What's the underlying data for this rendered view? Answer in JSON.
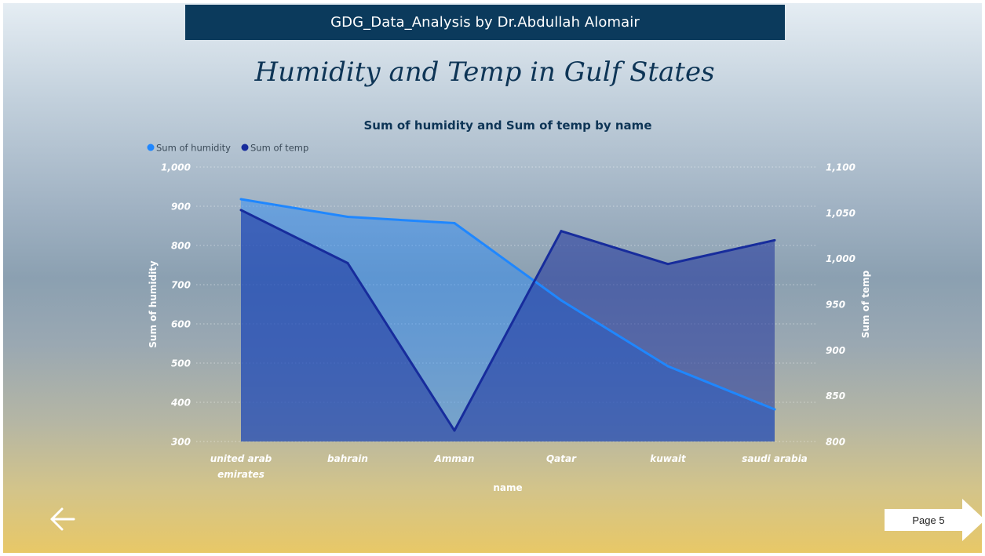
{
  "header": {
    "banner_text": "GDG_Data_Analysis by Dr.Abdullah Alomair",
    "page_title": "Humidity and Temp in Gulf States"
  },
  "navigation": {
    "back_icon": "arrow-left-icon",
    "page_label": "Page 5"
  },
  "colors": {
    "banner_bg": "#0b3a5c",
    "humidity": "#1f87ff",
    "temp": "#172c9c"
  },
  "chart_data": {
    "type": "area",
    "title": "Sum of humidity and Sum of temp by name",
    "xlabel": "name",
    "ylabel": "Sum of humidity",
    "y2label": "Sum of temp",
    "legend_position": "top-left",
    "grid": true,
    "categories": [
      "united arab emirates",
      "bahrain",
      "Amman",
      "Qatar",
      "kuwait",
      "saudi arabia"
    ],
    "category_labels": [
      [
        "united arab",
        "emirates"
      ],
      [
        "bahrain"
      ],
      [
        "Amman"
      ],
      [
        "Qatar"
      ],
      [
        "kuwait"
      ],
      [
        "saudi arabia"
      ]
    ],
    "series": [
      {
        "name": "Sum of humidity",
        "axis": "left",
        "values": [
          918,
          873,
          857,
          660,
          492,
          382
        ]
      },
      {
        "name": "Sum of temp",
        "axis": "right",
        "values": [
          1053,
          995,
          812,
          1030,
          994,
          1020
        ]
      }
    ],
    "ylim": [
      300,
      1000
    ],
    "y2lim": [
      800,
      1100
    ],
    "yticks": [
      "300",
      "400",
      "500",
      "600",
      "700",
      "800",
      "900",
      "1,000"
    ],
    "y2ticks": [
      "800",
      "850",
      "900",
      "950",
      "1,000",
      "1,050",
      "1,100"
    ]
  }
}
